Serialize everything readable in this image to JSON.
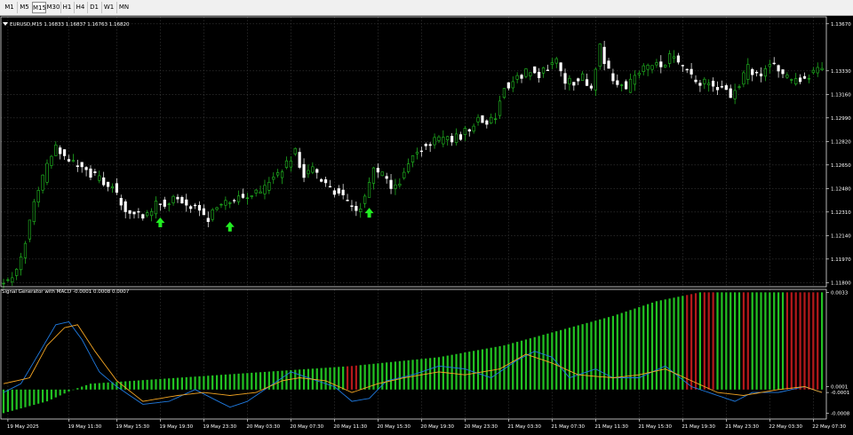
{
  "toolbar": {
    "timeframes": [
      "M1",
      "M5",
      "M15",
      "M30",
      "H1",
      "H4",
      "D1",
      "W1",
      "MN"
    ],
    "active": "M15"
  },
  "chart": {
    "symbol_header": "EURUSD,M15  1.16833 1.16837 1.16763 1.16820",
    "price_axis": [
      "1.13670",
      "1.13330",
      "1.13160",
      "1.12990",
      "1.12820",
      "1.12650",
      "1.12480",
      "1.12310",
      "1.12140",
      "1.11970",
      "1.11800"
    ],
    "price_values": [
      1.1367,
      1.1333,
      1.1316,
      1.1299,
      1.1282,
      1.1265,
      1.1248,
      1.1231,
      1.1214,
      1.1197,
      1.118
    ],
    "price_range": [
      1.1177,
      1.1372
    ],
    "path_anchors": [
      [
        0,
        1.1181
      ],
      [
        2,
        1.118
      ],
      [
        5,
        1.1196
      ],
      [
        8,
        1.1238
      ],
      [
        11,
        1.1264
      ],
      [
        13,
        1.1278
      ],
      [
        15,
        1.127
      ],
      [
        17,
        1.1266
      ],
      [
        19,
        1.1262
      ],
      [
        21,
        1.1258
      ],
      [
        23,
        1.1255
      ],
      [
        24,
        1.125
      ],
      [
        26,
        1.125
      ],
      [
        28,
        1.1236
      ],
      [
        30,
        1.1232
      ],
      [
        32,
        1.123
      ],
      [
        34,
        1.1228
      ],
      [
        36,
        1.1236
      ],
      [
        38,
        1.1238
      ],
      [
        40,
        1.124
      ],
      [
        42,
        1.1239
      ],
      [
        44,
        1.1236
      ],
      [
        46,
        1.1232
      ],
      [
        48,
        1.1226
      ],
      [
        50,
        1.1234
      ],
      [
        52,
        1.1238
      ],
      [
        54,
        1.1241
      ],
      [
        56,
        1.1242
      ],
      [
        58,
        1.1244
      ],
      [
        60,
        1.1244
      ],
      [
        62,
        1.1252
      ],
      [
        64,
        1.1258
      ],
      [
        66,
        1.1266
      ],
      [
        68,
        1.1274
      ],
      [
        70,
        1.1258
      ],
      [
        72,
        1.1262
      ],
      [
        74,
        1.1253
      ],
      [
        76,
        1.1248
      ],
      [
        78,
        1.1244
      ],
      [
        80,
        1.1238
      ],
      [
        82,
        1.1232
      ],
      [
        84,
        1.124
      ],
      [
        86,
        1.1262
      ],
      [
        88,
        1.1257
      ],
      [
        90,
        1.125
      ],
      [
        92,
        1.1253
      ],
      [
        94,
        1.1266
      ],
      [
        96,
        1.1276
      ],
      [
        98,
        1.128
      ],
      [
        100,
        1.1282
      ],
      [
        102,
        1.1284
      ],
      [
        104,
        1.1283
      ],
      [
        106,
        1.1286
      ],
      [
        108,
        1.1292
      ],
      [
        110,
        1.1298
      ],
      [
        112,
        1.1295
      ],
      [
        114,
        1.13
      ],
      [
        116,
        1.1322
      ],
      [
        118,
        1.1325
      ],
      [
        120,
        1.133
      ],
      [
        122,
        1.1333
      ],
      [
        124,
        1.133
      ],
      [
        126,
        1.1336
      ],
      [
        128,
        1.134
      ],
      [
        130,
        1.1326
      ],
      [
        132,
        1.1325
      ],
      [
        134,
        1.1328
      ],
      [
        136,
        1.1322
      ],
      [
        138,
        1.135
      ],
      [
        140,
        1.1332
      ],
      [
        142,
        1.1325
      ],
      [
        144,
        1.132
      ],
      [
        146,
        1.133
      ],
      [
        148,
        1.1335
      ],
      [
        150,
        1.1338
      ],
      [
        152,
        1.1336
      ],
      [
        154,
        1.1344
      ],
      [
        156,
        1.1338
      ],
      [
        158,
        1.1334
      ],
      [
        160,
        1.1324
      ],
      [
        162,
        1.1325
      ],
      [
        164,
        1.1323
      ],
      [
        166,
        1.132
      ],
      [
        168,
        1.1315
      ],
      [
        170,
        1.1322
      ],
      [
        172,
        1.1336
      ],
      [
        174,
        1.1329
      ],
      [
        176,
        1.1334
      ],
      [
        178,
        1.1338
      ],
      [
        180,
        1.133
      ],
      [
        182,
        1.1325
      ],
      [
        184,
        1.1328
      ],
      [
        186,
        1.133
      ],
      [
        188,
        1.1333
      ]
    ],
    "buy_arrows": [
      {
        "bar": 36,
        "price": 1.1227
      },
      {
        "bar": 52,
        "price": 1.1224
      },
      {
        "bar": 84,
        "price": 1.1234
      }
    ]
  },
  "indicator": {
    "title": "Signal Generator with MACD -0.0001 0.0008 0.0007",
    "axis_labels": [
      "0.0033",
      "0.0001",
      "-0.0001",
      "-0.0008"
    ],
    "axis_values": [
      0.0033,
      0.0001,
      -0.0001,
      -0.0008
    ],
    "range": [
      -0.001,
      0.0034
    ],
    "histogram_anchors": [
      [
        0,
        -0.0008
      ],
      [
        10,
        -0.0004
      ],
      [
        16,
        0.0
      ],
      [
        20,
        0.0002
      ],
      [
        40,
        0.0004
      ],
      [
        60,
        0.0006
      ],
      [
        80,
        0.0008
      ],
      [
        100,
        0.0011
      ],
      [
        115,
        0.0015
      ],
      [
        125,
        0.0019
      ],
      [
        140,
        0.0025
      ],
      [
        150,
        0.003
      ],
      [
        160,
        0.0033
      ],
      [
        188,
        0.0033
      ]
    ],
    "red_bar_ranges": [
      [
        79,
        81
      ],
      [
        157,
        159
      ],
      [
        161,
        163
      ],
      [
        170,
        171
      ],
      [
        180,
        187
      ]
    ],
    "colors": {
      "hist_up": "#22c322",
      "hist_down": "#b5191b",
      "macd_line": "#1f7ae0",
      "signal_line": "#f5a623"
    },
    "macd_anchors": [
      [
        0,
        -0.0001
      ],
      [
        4,
        0.0002
      ],
      [
        8,
        0.0012
      ],
      [
        12,
        0.0022
      ],
      [
        15,
        0.0023
      ],
      [
        18,
        0.0017
      ],
      [
        22,
        0.0006
      ],
      [
        26,
        0.0001
      ],
      [
        32,
        -0.0005
      ],
      [
        38,
        -0.0004
      ],
      [
        44,
        0.0
      ],
      [
        48,
        -0.0003
      ],
      [
        52,
        -0.0006
      ],
      [
        56,
        -0.0004
      ],
      [
        62,
        0.0002
      ],
      [
        66,
        0.0006
      ],
      [
        70,
        0.0004
      ],
      [
        76,
        0.0001
      ],
      [
        80,
        -0.0004
      ],
      [
        84,
        -0.0003
      ],
      [
        88,
        0.0003
      ],
      [
        94,
        0.0005
      ],
      [
        100,
        0.0008
      ],
      [
        106,
        0.0007
      ],
      [
        112,
        0.0004
      ],
      [
        118,
        0.001
      ],
      [
        122,
        0.0013
      ],
      [
        126,
        0.0011
      ],
      [
        130,
        0.0004
      ],
      [
        136,
        0.0007
      ],
      [
        140,
        0.0004
      ],
      [
        146,
        0.0004
      ],
      [
        152,
        0.0008
      ],
      [
        158,
        0.0001
      ],
      [
        164,
        -0.0002
      ],
      [
        168,
        -0.0004
      ],
      [
        172,
        -0.0001
      ],
      [
        178,
        -0.0001
      ],
      [
        184,
        0.0001
      ],
      [
        188,
        -0.0001
      ]
    ],
    "signal_anchors": [
      [
        0,
        0.0002
      ],
      [
        6,
        0.0004
      ],
      [
        10,
        0.0015
      ],
      [
        14,
        0.0021
      ],
      [
        17,
        0.0022
      ],
      [
        21,
        0.0013
      ],
      [
        26,
        0.0003
      ],
      [
        32,
        -0.0004
      ],
      [
        40,
        -0.0002
      ],
      [
        46,
        -0.0001
      ],
      [
        52,
        -0.0002
      ],
      [
        58,
        -0.0001
      ],
      [
        64,
        0.0003
      ],
      [
        68,
        0.0004
      ],
      [
        74,
        0.0003
      ],
      [
        80,
        -0.0001
      ],
      [
        86,
        0.0002
      ],
      [
        92,
        0.0004
      ],
      [
        100,
        0.0006
      ],
      [
        106,
        0.0005
      ],
      [
        114,
        0.0007
      ],
      [
        120,
        0.0012
      ],
      [
        126,
        0.0009
      ],
      [
        132,
        0.0005
      ],
      [
        140,
        0.0004
      ],
      [
        146,
        0.0005
      ],
      [
        152,
        0.0007
      ],
      [
        158,
        0.0003
      ],
      [
        164,
        -0.0001
      ],
      [
        170,
        -0.0002
      ],
      [
        178,
        0.0
      ],
      [
        184,
        0.0001
      ],
      [
        188,
        -0.0001
      ]
    ]
  },
  "time_axis": [
    {
      "bar": 1,
      "label": "19 May 2025"
    },
    {
      "bar": 15,
      "label": "19 May 11:30"
    },
    {
      "bar": 26,
      "label": "19 May 15:30"
    },
    {
      "bar": 36,
      "label": "19 May 19:30"
    },
    {
      "bar": 46,
      "label": "19 May 23:30"
    },
    {
      "bar": 56,
      "label": "20 May 03:30"
    },
    {
      "bar": 66,
      "label": "20 May 07:30"
    },
    {
      "bar": 76,
      "label": "20 May 11:30"
    },
    {
      "bar": 86,
      "label": "20 May 15:30"
    },
    {
      "bar": 96,
      "label": "20 May 19:30"
    },
    {
      "bar": 106,
      "label": "20 May 23:30"
    },
    {
      "bar": 116,
      "label": "21 May 03:30"
    },
    {
      "bar": 126,
      "label": "21 May 07:30"
    },
    {
      "bar": 136,
      "label": "21 May 11:30"
    },
    {
      "bar": 146,
      "label": "21 May 15:30"
    },
    {
      "bar": 156,
      "label": "21 May 19:30"
    },
    {
      "bar": 166,
      "label": "21 May 23:30"
    },
    {
      "bar": 176,
      "label": "22 May 03:30"
    },
    {
      "bar": 186,
      "label": "22 May 07:30"
    }
  ]
}
